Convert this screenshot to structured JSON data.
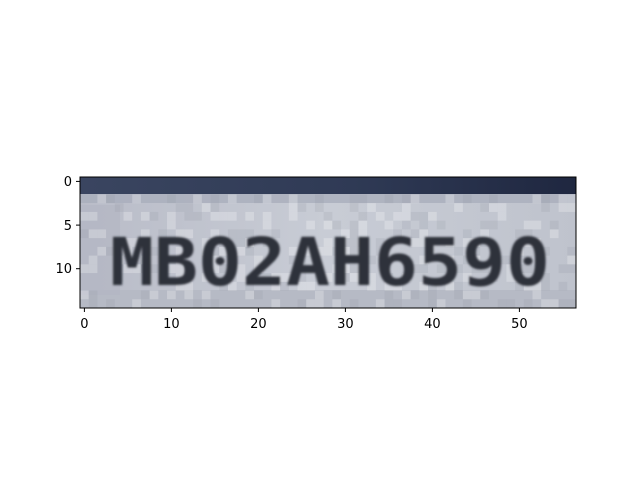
{
  "image": {
    "content": "pixelated license plate crop shown in an image-axes plot",
    "plate_text": "МВ02АН6590",
    "pixel_grid": {
      "width": 57,
      "height": 15
    },
    "colors": {
      "top_band": "#2b3550",
      "plate_background": "#c4c8d2",
      "plate_shadow": "#9aa0ad",
      "characters": "#2f323a",
      "axes_frame": "#000000"
    }
  },
  "axes": {
    "x_ticks": [
      "0",
      "10",
      "20",
      "30",
      "40",
      "50"
    ],
    "y_ticks": [
      "0",
      "5",
      "10"
    ]
  }
}
